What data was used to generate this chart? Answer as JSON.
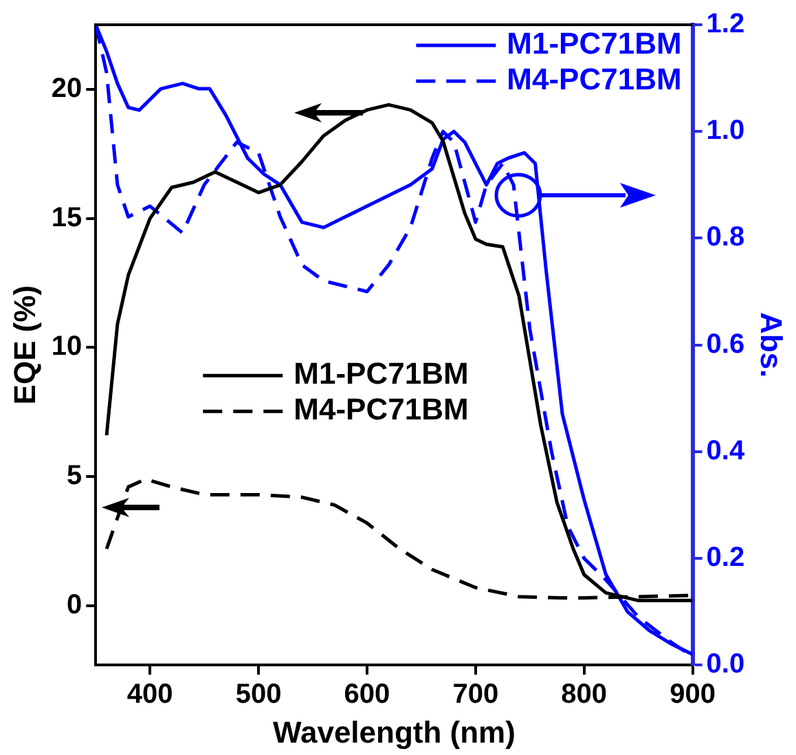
{
  "chart_data": {
    "type": "line",
    "xlabel": "Wavelength (nm)",
    "ylabel": "EQE (%)",
    "y2label": "Abs.",
    "xlim": [
      350,
      900
    ],
    "xticks": [
      400,
      500,
      600,
      700,
      800,
      900
    ],
    "ylim": [
      -2.3,
      22.5
    ],
    "yticks": [
      0,
      5,
      10,
      15,
      20
    ],
    "y2lim": [
      0,
      1.2
    ],
    "y2ticks": [
      {
        "value": 0,
        "label": "0.0"
      },
      {
        "value": 0.2,
        "label": "0.2"
      },
      {
        "value": 0.4,
        "label": "0.4"
      },
      {
        "value": 0.6,
        "label": "0.6"
      },
      {
        "value": 0.8,
        "label": "0.8"
      },
      {
        "value": 1,
        "label": "1.0"
      },
      1.2
    ],
    "grid": false,
    "legend": "top right",
    "marker": "none",
    "series": [
      {
        "name": "M1-PC71BM",
        "color": "#000000",
        "line_style": "solid",
        "x": [
          360,
          370,
          380,
          400,
          420,
          440,
          460,
          480,
          500,
          520,
          540,
          560,
          580,
          600,
          620,
          640,
          660,
          670,
          680,
          690,
          700,
          710,
          725,
          740,
          750,
          760,
          775,
          790,
          800,
          820,
          850,
          900
        ],
        "values": [
          6.6,
          10.9,
          12.8,
          15.0,
          16.2,
          16.4,
          16.8,
          16.4,
          16.0,
          16.3,
          17.2,
          18.2,
          18.8,
          19.2,
          19.4,
          19.2,
          18.7,
          18.0,
          16.6,
          15.2,
          14.2,
          14.0,
          13.9,
          12.0,
          9.5,
          7.0,
          4.0,
          2.2,
          1.2,
          0.5,
          0.2,
          0.2
        ]
      },
      {
        "name": "M4-PC71BM",
        "color": "#000000",
        "line_style": "dashed",
        "x": [
          360,
          380,
          396,
          420,
          450,
          500,
          540,
          570,
          600,
          630,
          660,
          700,
          740,
          780,
          800,
          850,
          900
        ],
        "values": [
          2.2,
          4.6,
          4.9,
          4.6,
          4.3,
          4.3,
          4.2,
          3.9,
          3.2,
          2.2,
          1.4,
          0.7,
          0.35,
          0.3,
          0.3,
          0.35,
          0.4
        ]
      },
      {
        "name": "M1-PC71BM",
        "color": "#0000ff",
        "line_style": "solid",
        "axis": "y2",
        "x": [
          350,
          360,
          370,
          380,
          390,
          410,
          430,
          445,
          455,
          470,
          490,
          505,
          520,
          540,
          560,
          580,
          600,
          620,
          640,
          660,
          670,
          680,
          690,
          700,
          710,
          720,
          730,
          745,
          755,
          765,
          780,
          800,
          820,
          840,
          860,
          880,
          900
        ],
        "values": [
          1.2,
          1.15,
          1.09,
          1.045,
          1.04,
          1.08,
          1.09,
          1.08,
          1.08,
          1.03,
          0.95,
          0.92,
          0.9,
          0.83,
          0.82,
          0.84,
          0.86,
          0.88,
          0.9,
          0.93,
          0.985,
          1.0,
          0.98,
          0.94,
          0.9,
          0.94,
          0.95,
          0.96,
          0.94,
          0.74,
          0.47,
          0.31,
          0.17,
          0.1,
          0.065,
          0.04,
          0.02
        ]
      },
      {
        "name": "M4-PC71BM",
        "color": "#0000ff",
        "line_style": "dashed",
        "axis": "y2",
        "x": [
          350,
          360,
          370,
          380,
          400,
          430,
          450,
          480,
          500,
          520,
          540,
          560,
          580,
          600,
          620,
          640,
          660,
          670,
          680,
          700,
          710,
          725,
          735,
          750,
          770,
          785,
          800,
          820,
          850,
          880,
          900
        ],
        "values": [
          1.2,
          1.11,
          0.9,
          0.84,
          0.86,
          0.81,
          0.9,
          0.98,
          0.96,
          0.84,
          0.75,
          0.72,
          0.71,
          0.7,
          0.75,
          0.82,
          0.95,
          1.0,
          0.98,
          0.83,
          0.9,
          0.94,
          0.9,
          0.63,
          0.4,
          0.26,
          0.2,
          0.16,
          0.09,
          0.043,
          0.016
        ]
      }
    ]
  }
}
